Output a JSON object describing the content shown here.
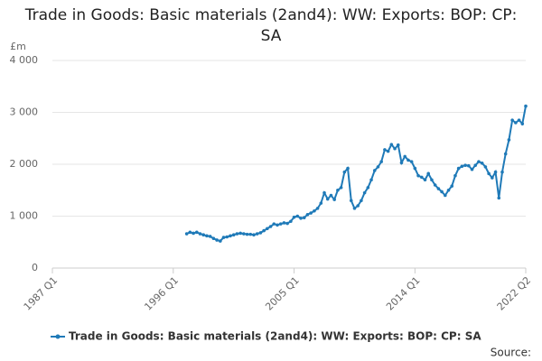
{
  "chart_data": {
    "type": "line",
    "title": "Trade in Goods: Basic materials (2and4): WW: Exports: BOP: CP: SA",
    "y_label": "£m",
    "source": "Source:",
    "categories": [
      "1987 Q1",
      null,
      null,
      null,
      null,
      null,
      null,
      null,
      null,
      null,
      null,
      null,
      null,
      null,
      null,
      null,
      null,
      null,
      null,
      null,
      null,
      null,
      null,
      null,
      null,
      null,
      null,
      null,
      null,
      null,
      null,
      null,
      null,
      null,
      null,
      null,
      "1996 Q1",
      null,
      null,
      null,
      null,
      null,
      null,
      null,
      null,
      null,
      null,
      null,
      null,
      null,
      null,
      null,
      null,
      null,
      null,
      null,
      null,
      null,
      null,
      null,
      null,
      null,
      null,
      null,
      null,
      null,
      null,
      null,
      null,
      null,
      null,
      null,
      "2005 Q1",
      null,
      null,
      null,
      null,
      null,
      null,
      null,
      null,
      null,
      null,
      null,
      null,
      null,
      null,
      null,
      null,
      null,
      null,
      null,
      null,
      null,
      null,
      null,
      null,
      null,
      null,
      null,
      null,
      null,
      null,
      null,
      null,
      null,
      null,
      null,
      "2014 Q1",
      null,
      null,
      null,
      null,
      null,
      null,
      null,
      null,
      null,
      null,
      null,
      null,
      null,
      null,
      null,
      null,
      null,
      null,
      null,
      null,
      null,
      null,
      null,
      null,
      null,
      null,
      null,
      null,
      null,
      null,
      null,
      null,
      "2022 Q2"
    ],
    "series": [
      {
        "name": "Trade in Goods: Basic materials (2and4): WW: Exports: BOP: CP: SA",
        "color": "#1f7ab8",
        "values": [
          null,
          null,
          null,
          null,
          null,
          null,
          null,
          null,
          null,
          null,
          null,
          null,
          null,
          null,
          null,
          null,
          null,
          null,
          null,
          null,
          null,
          null,
          null,
          null,
          null,
          null,
          null,
          null,
          null,
          null,
          null,
          null,
          null,
          null,
          null,
          null,
          null,
          null,
          null,
          null,
          660,
          690,
          670,
          690,
          660,
          640,
          620,
          610,
          570,
          540,
          520,
          590,
          600,
          620,
          640,
          660,
          670,
          660,
          650,
          650,
          640,
          660,
          680,
          720,
          760,
          800,
          850,
          830,
          850,
          870,
          860,
          900,
          980,
          1000,
          960,
          970,
          1030,
          1060,
          1100,
          1150,
          1250,
          1450,
          1330,
          1400,
          1320,
          1500,
          1550,
          1850,
          1920,
          1300,
          1150,
          1200,
          1300,
          1450,
          1550,
          1700,
          1880,
          1950,
          2050,
          2280,
          2250,
          2380,
          2300,
          2370,
          2030,
          2150,
          2080,
          2050,
          1920,
          1780,
          1750,
          1700,
          1820,
          1700,
          1600,
          1530,
          1470,
          1400,
          1500,
          1580,
          1780,
          1920,
          1960,
          1980,
          1970,
          1900,
          1980,
          2050,
          2020,
          1950,
          1820,
          1740,
          1850,
          1350,
          1850,
          2200,
          2470,
          2850,
          2800,
          2850,
          2780,
          3120
        ]
      }
    ],
    "ylim": [
      0,
      4000
    ],
    "yticks": [
      0,
      {
        "value": 1000,
        "label": "1 000"
      },
      {
        "value": 2000,
        "label": "2 000"
      },
      {
        "value": 3000,
        "label": "3 000"
      },
      {
        "value": 4000,
        "label": "4 000"
      }
    ],
    "grid": true
  }
}
